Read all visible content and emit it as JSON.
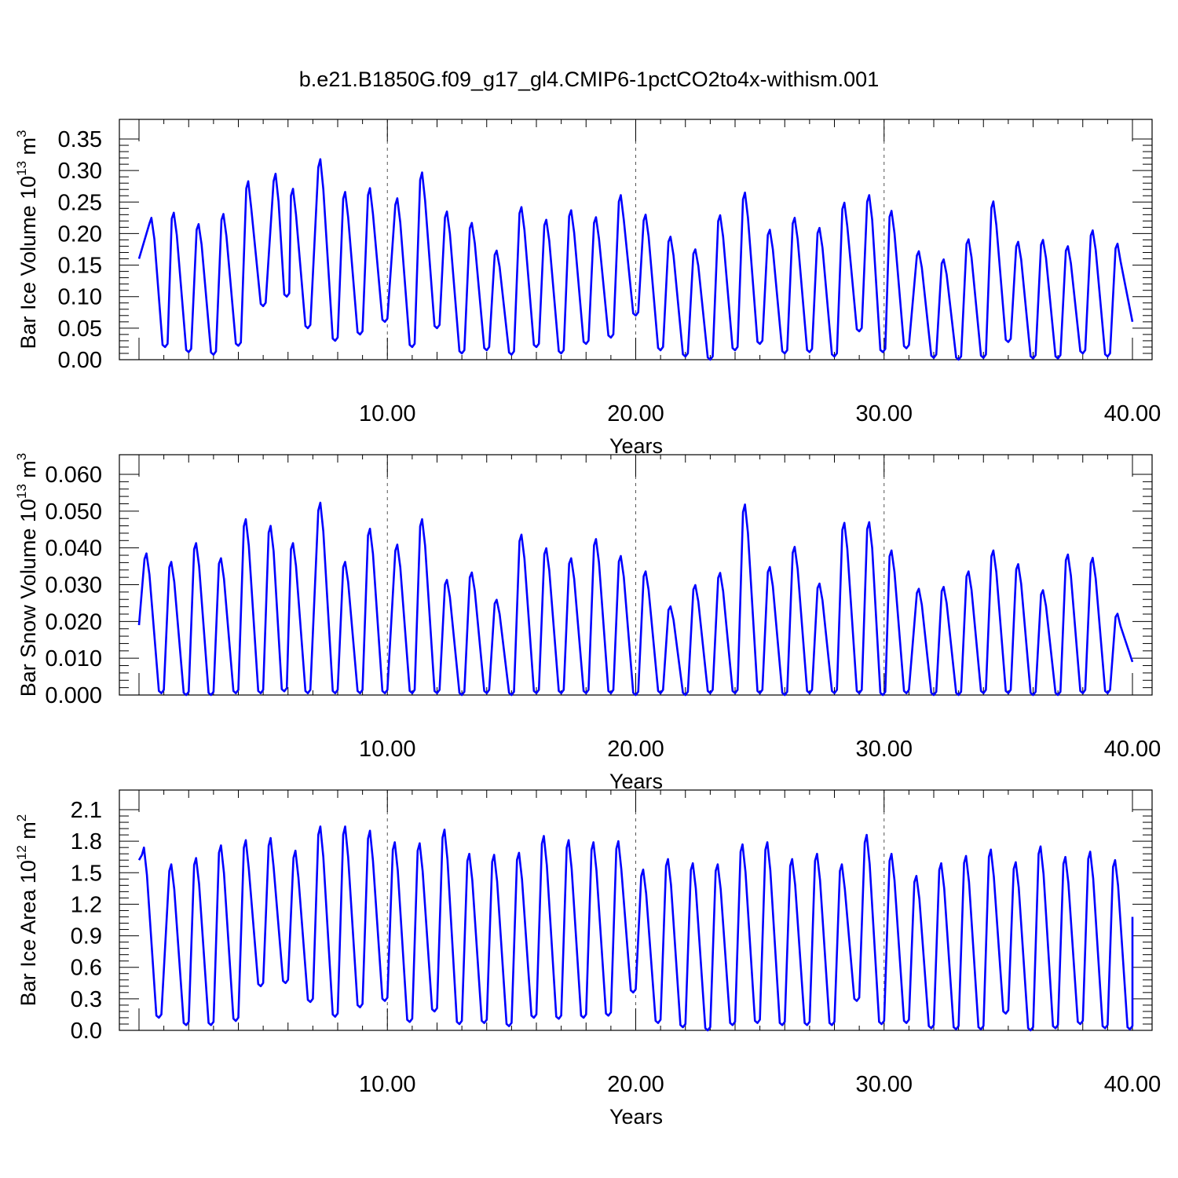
{
  "title": "b.e21.B1850G.f09_g17_gl4.CMIP6-1pctCO2to4x-withism.001",
  "colors": {
    "line": "#0000ff",
    "axis": "#000000"
  },
  "chart_data": [
    {
      "type": "line",
      "xlabel": "Years",
      "ylabel": "Bar Ice Volume 10",
      "ylabel_exp": "13",
      "ylabel_unit": " m",
      "ylabel_unit_exp": "3",
      "xlim": [
        0,
        40
      ],
      "ylim": [
        0,
        0.35
      ],
      "xticks": [
        10,
        20,
        30,
        40
      ],
      "xtick_labels": [
        "10.00",
        "20.00",
        "30.00",
        "40.00"
      ],
      "yticks": [
        0,
        0.05,
        0.1,
        0.15,
        0.2,
        0.25,
        0.3,
        0.35
      ],
      "ytick_labels": [
        "0.00",
        "0.05",
        "0.10",
        "0.15",
        "0.20",
        "0.25",
        "0.30",
        "0.35"
      ],
      "grid": "vertical dashed at 10, 20, 30",
      "series": [
        {
          "color": "#0000ff",
          "peak_x": [
            0.5,
            1.4,
            2.4,
            3.4,
            4.4,
            5.5,
            6.2,
            7.3,
            8.3,
            9.3,
            10.4,
            11.4,
            12.4,
            13.4,
            14.4,
            15.4,
            16.4,
            17.4,
            18.4,
            19.4,
            20.4,
            21.4,
            22.4,
            23.4,
            24.4,
            25.4,
            26.4,
            27.4,
            28.4,
            29.4,
            30.3,
            31.4,
            32.4,
            33.4,
            34.4,
            35.4,
            36.4,
            37.4,
            38.4,
            39.4
          ],
          "peaks": [
            0.225,
            0.233,
            0.215,
            0.231,
            0.283,
            0.295,
            0.271,
            0.318,
            0.266,
            0.272,
            0.256,
            0.297,
            0.235,
            0.217,
            0.173,
            0.242,
            0.222,
            0.237,
            0.226,
            0.261,
            0.23,
            0.195,
            0.175,
            0.229,
            0.265,
            0.206,
            0.225,
            0.209,
            0.249,
            0.261,
            0.236,
            0.172,
            0.159,
            0.191,
            0.251,
            0.187,
            0.19,
            0.18,
            0.205,
            0.184
          ],
          "troughs": [
            0.02,
            0.012,
            0.008,
            0.022,
            0.085,
            0.1,
            0.05,
            0.03,
            0.04,
            0.06,
            0.02,
            0.05,
            0.01,
            0.015,
            0.008,
            0.02,
            0.01,
            0.025,
            0.035,
            0.07,
            0.015,
            0.005,
            0.0,
            0.015,
            0.025,
            0.01,
            0.012,
            0.005,
            0.045,
            0.012,
            0.018,
            0.003,
            0.0,
            0.003,
            0.028,
            0.002,
            0.002,
            0.01,
            0.005,
            0.0
          ],
          "start": 0.16,
          "end": 0.06
        }
      ]
    },
    {
      "type": "line",
      "xlabel": "Years",
      "ylabel": "Bar Snow Volume 10",
      "ylabel_exp": "13",
      "ylabel_unit": " m",
      "ylabel_unit_exp": "3",
      "xlim": [
        0,
        40
      ],
      "ylim": [
        0,
        0.06
      ],
      "xticks": [
        10,
        20,
        30,
        40
      ],
      "xtick_labels": [
        "10.00",
        "20.00",
        "30.00",
        "40.00"
      ],
      "yticks": [
        0,
        0.01,
        0.02,
        0.03,
        0.04,
        0.05,
        0.06
      ],
      "ytick_labels": [
        "0.000",
        "0.010",
        "0.020",
        "0.030",
        "0.040",
        "0.050",
        "0.060"
      ],
      "grid": "vertical dashed at 10, 20, 30",
      "series": [
        {
          "color": "#0000ff",
          "peak_x": [
            0.3,
            1.3,
            2.3,
            3.3,
            4.3,
            5.3,
            6.2,
            7.3,
            8.3,
            9.3,
            10.4,
            11.4,
            12.4,
            13.4,
            14.4,
            15.4,
            16.4,
            17.4,
            18.4,
            19.4,
            20.4,
            21.4,
            22.4,
            23.4,
            24.4,
            25.4,
            26.4,
            27.4,
            28.4,
            29.4,
            30.3,
            31.4,
            32.4,
            33.4,
            34.4,
            35.4,
            36.4,
            37.4,
            38.4,
            39.4
          ],
          "peaks": [
            0.0385,
            0.0362,
            0.0413,
            0.0372,
            0.0478,
            0.046,
            0.0413,
            0.0523,
            0.0362,
            0.0452,
            0.0409,
            0.0478,
            0.0313,
            0.0333,
            0.0259,
            0.0436,
            0.0399,
            0.0372,
            0.0424,
            0.0378,
            0.0336,
            0.0241,
            0.0299,
            0.0332,
            0.0518,
            0.0348,
            0.0403,
            0.0303,
            0.0468,
            0.047,
            0.0393,
            0.0289,
            0.0294,
            0.0336,
            0.0393,
            0.0356,
            0.0285,
            0.0382,
            0.0373,
            0.0221
          ],
          "troughs": [
            0.0005,
            0.0,
            0.0,
            0.0005,
            0.0005,
            0.001,
            0.0005,
            0.0005,
            0.0005,
            0.0005,
            0.0005,
            0.0005,
            0.0,
            0.0005,
            0.0,
            0.0005,
            0.0005,
            0.0005,
            0.0005,
            0.0,
            0.0005,
            0.0,
            0.0005,
            0.0005,
            0.0005,
            0.0,
            0.0005,
            0.0005,
            0.0005,
            0.0,
            0.0005,
            0.0,
            0.0,
            0.0005,
            0.0005,
            0.0,
            0.0,
            0.0005,
            0.0005,
            0.0
          ],
          "start": 0.019,
          "end": 0.009
        }
      ]
    },
    {
      "type": "line",
      "xlabel": "Years",
      "ylabel": "Bar Ice Area 10",
      "ylabel_exp": "12",
      "ylabel_unit": " m",
      "ylabel_unit_exp": "2",
      "xlim": [
        0,
        40
      ],
      "ylim": [
        0,
        2.1
      ],
      "xticks": [
        10,
        20,
        30,
        40
      ],
      "xtick_labels": [
        "10.00",
        "20.00",
        "30.00",
        "40.00"
      ],
      "yticks": [
        0,
        0.3,
        0.6,
        0.9,
        1.2,
        1.5,
        1.8,
        2.1
      ],
      "ytick_labels": [
        "0.0",
        "0.3",
        "0.6",
        "0.9",
        "1.2",
        "1.5",
        "1.8",
        "2.1"
      ],
      "grid": "vertical dashed at 10, 20, 30",
      "series": [
        {
          "color": "#0000ff",
          "peak_x": [
            0.2,
            1.3,
            2.3,
            3.3,
            4.3,
            5.3,
            6.3,
            7.3,
            8.3,
            9.3,
            10.3,
            11.3,
            12.3,
            13.3,
            14.3,
            15.3,
            16.3,
            17.3,
            18.3,
            19.3,
            20.3,
            21.3,
            22.3,
            23.3,
            24.3,
            25.3,
            26.3,
            27.3,
            28.3,
            29.3,
            30.3,
            31.3,
            32.3,
            33.3,
            34.3,
            35.3,
            36.3,
            37.3,
            38.3,
            39.3
          ],
          "peaks": [
            1.74,
            1.58,
            1.64,
            1.76,
            1.81,
            1.83,
            1.71,
            1.94,
            1.94,
            1.9,
            1.79,
            1.78,
            1.91,
            1.68,
            1.67,
            1.69,
            1.85,
            1.81,
            1.79,
            1.8,
            1.53,
            1.63,
            1.59,
            1.58,
            1.77,
            1.79,
            1.63,
            1.68,
            1.58,
            1.86,
            1.68,
            1.47,
            1.59,
            1.66,
            1.72,
            1.6,
            1.75,
            1.65,
            1.7,
            1.62
          ],
          "troughs": [
            0.12,
            0.05,
            0.05,
            0.09,
            0.42,
            0.45,
            0.27,
            0.13,
            0.22,
            0.28,
            0.08,
            0.18,
            0.06,
            0.07,
            0.04,
            0.12,
            0.11,
            0.12,
            0.14,
            0.36,
            0.07,
            0.03,
            0.0,
            0.05,
            0.07,
            0.05,
            0.05,
            0.05,
            0.28,
            0.06,
            0.07,
            0.02,
            0.01,
            0.01,
            0.16,
            0.0,
            0.02,
            0.06,
            0.02,
            0.01
          ],
          "start": 1.62,
          "end": 1.08
        }
      ]
    }
  ]
}
